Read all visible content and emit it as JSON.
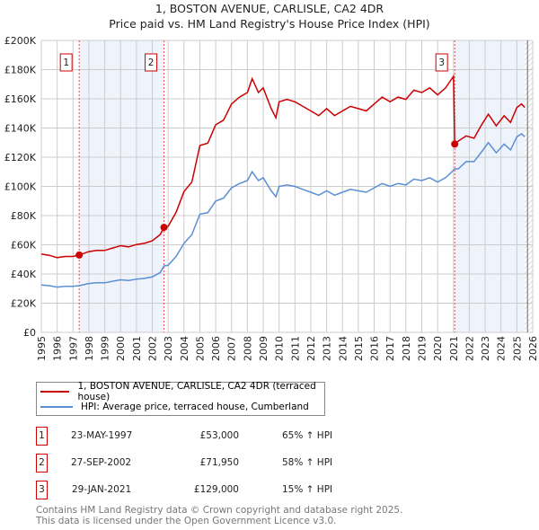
{
  "chart_data": {
    "type": "line",
    "title": "1, BOSTON AVENUE, CARLISLE, CA2 4DR",
    "subtitle": "Price paid vs. HM Land Registry's House Price Index (HPI)",
    "xlim": [
      1995,
      2026
    ],
    "ylim": [
      0,
      200000
    ],
    "y_ticks": [
      0,
      20000,
      40000,
      60000,
      80000,
      100000,
      120000,
      140000,
      160000,
      180000,
      200000
    ],
    "y_tick_labels": [
      "£0",
      "£20K",
      "£40K",
      "£60K",
      "£80K",
      "£100K",
      "£120K",
      "£140K",
      "£160K",
      "£180K",
      "£200K"
    ],
    "x_tick_labels": [
      "1995",
      "1996",
      "1997",
      "1998",
      "1999",
      "2000",
      "2001",
      "2002",
      "2003",
      "2004",
      "2005",
      "2006",
      "2007",
      "2008",
      "2009",
      "2010",
      "2011",
      "2012",
      "2013",
      "2014",
      "2015",
      "2016",
      "2017",
      "2018",
      "2019",
      "2020",
      "2021",
      "2022",
      "2023",
      "2024",
      "2025",
      "2026"
    ],
    "grid": true,
    "series": [
      {
        "name": "1, BOSTON AVENUE, CARLISLE, CA2 4DR (terraced house)",
        "color": "#cc0000",
        "x": [
          1995,
          1995.5,
          1996,
          1996.5,
          1997,
          1997.39,
          1998,
          1998.5,
          1999,
          1999.5,
          2000,
          2000.5,
          2001,
          2001.5,
          2002,
          2002.5,
          2002.74,
          2003,
          2003.5,
          2004,
          2004.5,
          2005,
          2005.5,
          2006,
          2006.5,
          2007,
          2007.5,
          2008,
          2008.3,
          2008.7,
          2009,
          2009.5,
          2009.8,
          2010,
          2010.5,
          2011,
          2011.5,
          2012,
          2012.5,
          2013,
          2013.5,
          2014,
          2014.5,
          2015,
          2015.5,
          2016,
          2016.5,
          2017,
          2017.5,
          2018,
          2018.5,
          2019,
          2019.5,
          2020,
          2020.5,
          2021,
          2021.08,
          2021.3,
          2021.8,
          2022.3,
          2022.8,
          2023.2,
          2023.7,
          2024.2,
          2024.6,
          2025,
          2025.3,
          2025.5
        ],
        "y": [
          53600,
          52800,
          51200,
          52000,
          52000,
          53000,
          55300,
          56100,
          56100,
          57800,
          59400,
          58600,
          60200,
          61000,
          62700,
          67000,
          71950,
          72700,
          82200,
          96400,
          103000,
          128000,
          129600,
          142200,
          145400,
          156400,
          161200,
          164300,
          173800,
          164300,
          167500,
          153300,
          147000,
          158000,
          159600,
          158000,
          154800,
          151700,
          148500,
          153300,
          148500,
          151700,
          154800,
          153300,
          151700,
          156400,
          161200,
          158000,
          161200,
          159600,
          165900,
          164300,
          167500,
          162700,
          167500,
          175400,
          129000,
          131000,
          134600,
          133000,
          142600,
          149500,
          141500,
          148400,
          143800,
          154100,
          156400,
          154100
        ]
      },
      {
        "name": "HPI: Average price, terraced house, Cumberland",
        "color": "#5b8fd4",
        "x": [
          1995,
          1995.5,
          1996,
          1996.5,
          1997,
          1997.39,
          1998,
          1998.5,
          1999,
          1999.5,
          2000,
          2000.5,
          2001,
          2001.5,
          2002,
          2002.5,
          2002.74,
          2003,
          2003.5,
          2004,
          2004.5,
          2005,
          2005.5,
          2006,
          2006.5,
          2007,
          2007.5,
          2008,
          2008.3,
          2008.7,
          2009,
          2009.5,
          2009.8,
          2010,
          2010.5,
          2011,
          2011.5,
          2012,
          2012.5,
          2013,
          2013.5,
          2014,
          2014.5,
          2015,
          2015.5,
          2016,
          2016.5,
          2017,
          2017.5,
          2018,
          2018.5,
          2019,
          2019.5,
          2020,
          2020.5,
          2021,
          2021.08,
          2021.3,
          2021.8,
          2022.3,
          2022.8,
          2023.2,
          2023.7,
          2024.2,
          2024.6,
          2025,
          2025.3,
          2025.5
        ],
        "y": [
          32500,
          32000,
          31000,
          31500,
          31500,
          32000,
          33500,
          34000,
          34000,
          35000,
          36000,
          35500,
          36500,
          37000,
          38000,
          41000,
          45500,
          46000,
          52000,
          61000,
          67000,
          81000,
          82000,
          90000,
          92000,
          99000,
          102000,
          104000,
          110000,
          104000,
          106000,
          97000,
          93000,
          100000,
          101000,
          100000,
          98000,
          96000,
          94000,
          97000,
          94000,
          96000,
          98000,
          97000,
          96000,
          99000,
          102000,
          100000,
          102000,
          101000,
          105000,
          104000,
          106000,
          103000,
          106000,
          111000,
          112000,
          112000,
          117000,
          117000,
          124000,
          130000,
          123000,
          129000,
          125000,
          134000,
          136000,
          134000
        ]
      }
    ],
    "sales": [
      {
        "label": "1",
        "x": 1997.39,
        "y": 53000
      },
      {
        "label": "2",
        "x": 2002.74,
        "y": 71950
      },
      {
        "label": "3",
        "x": 2021.08,
        "y": 129000
      }
    ],
    "shaded_ranges": [
      [
        1997.39,
        2002.74
      ],
      [
        2021.08,
        2025.5
      ]
    ],
    "hatched_from": 2025.5,
    "legend": "below"
  },
  "legend": {
    "red": "1, BOSTON AVENUE, CARLISLE, CA2 4DR (terraced house)",
    "blue": "HPI: Average price, terraced house, Cumberland"
  },
  "transactions": [
    {
      "num": "1",
      "date": "23-MAY-1997",
      "price": "£53,000",
      "hpi": "65% ↑ HPI"
    },
    {
      "num": "2",
      "date": "27-SEP-2002",
      "price": "£71,950",
      "hpi": "58% ↑ HPI"
    },
    {
      "num": "3",
      "date": "29-JAN-2021",
      "price": "£129,000",
      "hpi": "15% ↑ HPI"
    }
  ],
  "footer": {
    "line1": "Contains HM Land Registry data © Crown copyright and database right 2025.",
    "line2": "This data is licensed under the Open Government Licence v3.0."
  }
}
